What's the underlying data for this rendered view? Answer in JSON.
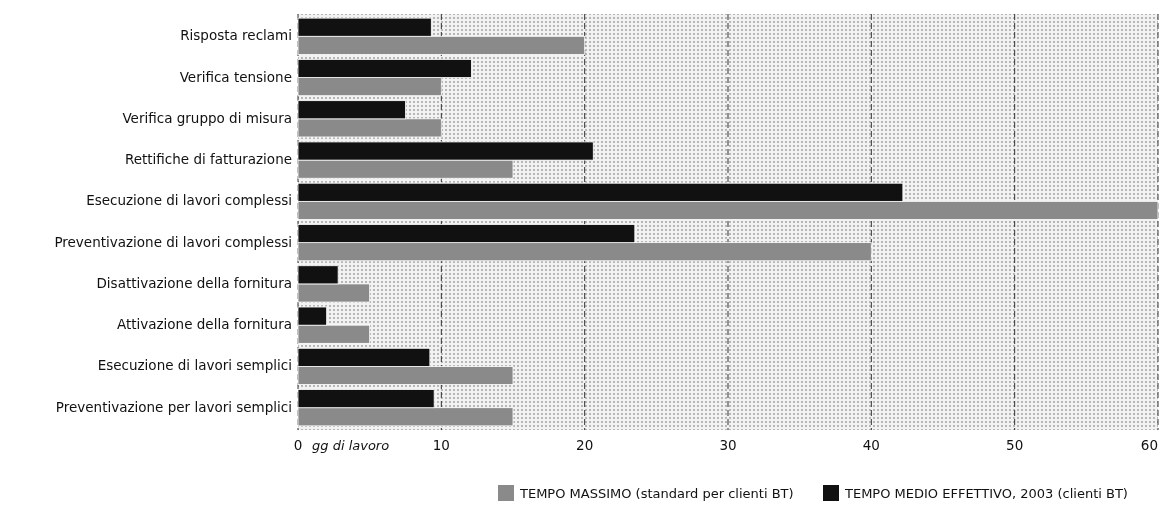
{
  "chart_data": {
    "type": "bar",
    "orientation": "horizontal",
    "xlabel": "gg di lavoro",
    "categories": [
      "Risposta reclami",
      "Verifica tensione",
      "Verifica gruppo di misura",
      "Rettifiche di fatturazione",
      "Esecuzione di lavori complessi",
      "Preventivazione di lavori complessi",
      "Disattivazione della fornitura",
      "Attivazione della fornitura",
      "Esecuzione di lavori semplici",
      "Preventivazione per lavori semplici"
    ],
    "series": [
      {
        "name": "TEMPO MASSIMO (standard per clienti BT)",
        "color": "#8a8a8a",
        "values": [
          20,
          10,
          10,
          15,
          60,
          40,
          5,
          5,
          15,
          15
        ]
      },
      {
        "name": "TEMPO MEDIO EFFETTIVO, 2003 (clienti BT)",
        "color": "#111111",
        "values": [
          9.3,
          12.1,
          7.5,
          20.6,
          42.2,
          23.5,
          2.8,
          2.0,
          9.2,
          9.5
        ]
      }
    ],
    "xlim": [
      0,
      60
    ],
    "xticks": [
      0,
      10,
      20,
      30,
      40,
      50,
      60
    ],
    "grid": "x",
    "legend": "bottom"
  }
}
